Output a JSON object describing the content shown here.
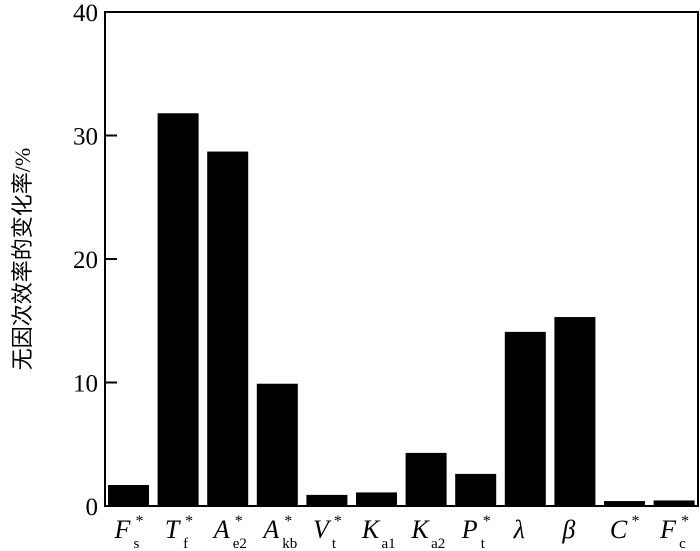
{
  "chart_data": {
    "type": "bar",
    "title": "",
    "xlabel": "",
    "ylabel": "无因次效率的变化率/%",
    "ylim": [
      0,
      40
    ],
    "yticks": [
      0,
      10,
      20,
      30,
      40
    ],
    "grid": false,
    "bar_color": "#000000",
    "categories": [
      {
        "main": "F",
        "sup": "*",
        "sub": "s"
      },
      {
        "main": "T",
        "sup": "*",
        "sub": "f"
      },
      {
        "main": "A",
        "sup": "*",
        "sub": "e2"
      },
      {
        "main": "A",
        "sup": "*",
        "sub": "kb"
      },
      {
        "main": "V",
        "sup": "*",
        "sub": "t"
      },
      {
        "main": "K",
        "sup": "",
        "sub": "a1"
      },
      {
        "main": "K",
        "sup": "",
        "sub": "a2"
      },
      {
        "main": "P",
        "sup": "*",
        "sub": "t"
      },
      {
        "main": "λ",
        "sup": "",
        "sub": ""
      },
      {
        "main": "β",
        "sup": "",
        "sub": ""
      },
      {
        "main": "C",
        "sup": "*",
        "sub": ""
      },
      {
        "main": "F",
        "sup": "*",
        "sub": "c"
      }
    ],
    "values": [
      1.7,
      31.8,
      28.7,
      9.9,
      0.9,
      1.1,
      4.3,
      2.6,
      14.1,
      15.3,
      0.4,
      0.45
    ]
  }
}
